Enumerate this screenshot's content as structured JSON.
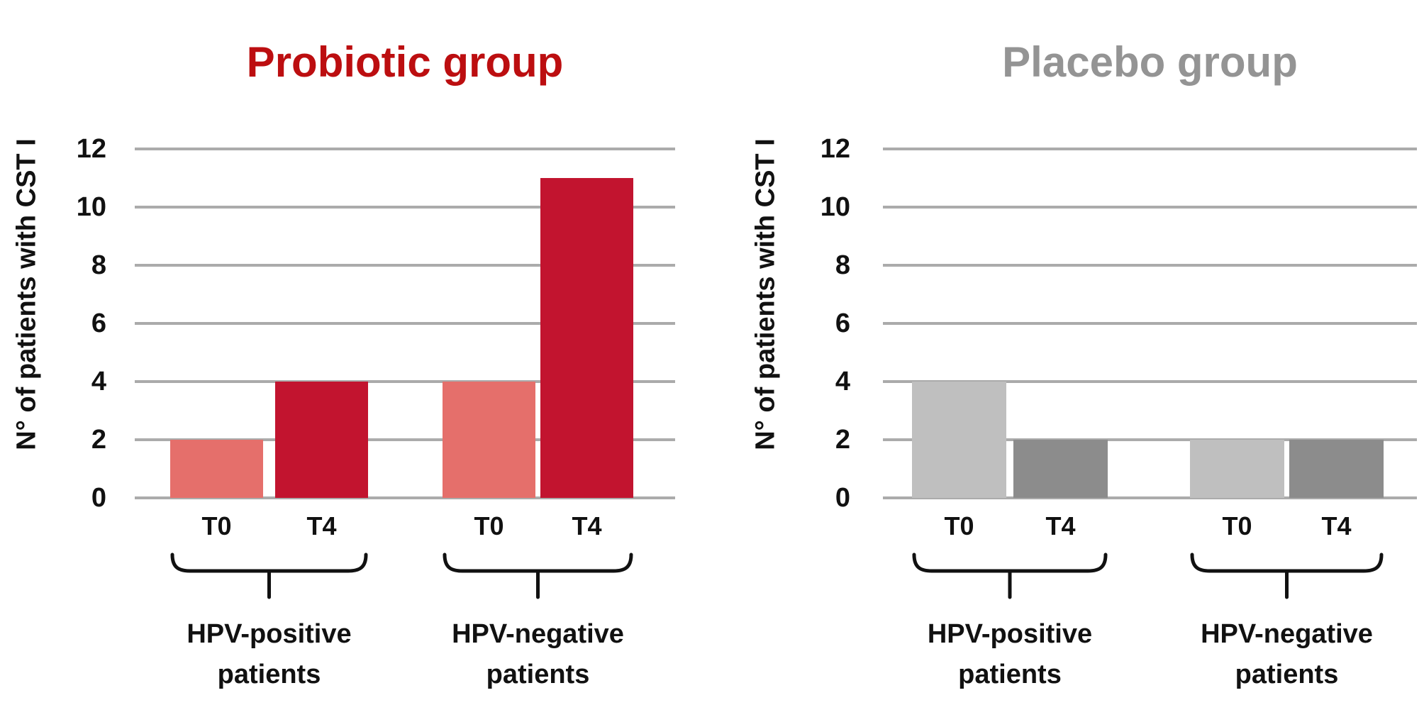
{
  "chart_data": [
    {
      "id": "probiotic",
      "type": "bar",
      "title": "Probiotic group",
      "title_color": "#BC0E10",
      "ylabel": "N° of patients with CST I",
      "ylim": [
        0,
        12
      ],
      "yticks": [
        0,
        2,
        4,
        6,
        8,
        10,
        12
      ],
      "grid": "horizontal",
      "legend": "none",
      "groups": [
        {
          "label": "HPV-positive\npatients",
          "bars": [
            {
              "label": "T0",
              "value": 2,
              "color": "#E56F6B"
            },
            {
              "label": "T4",
              "value": 4,
              "color": "#C2142F"
            }
          ]
        },
        {
          "label": "HPV-negative\npatients",
          "bars": [
            {
              "label": "T0",
              "value": 4,
              "color": "#E56F6B"
            },
            {
              "label": "T4",
              "value": 11,
              "color": "#C2142F"
            }
          ]
        }
      ]
    },
    {
      "id": "placebo",
      "type": "bar",
      "title": "Placebo group",
      "title_color": "#949494",
      "ylabel": "N° of patients with CST I",
      "ylim": [
        0,
        12
      ],
      "yticks": [
        0,
        2,
        4,
        6,
        8,
        10,
        12
      ],
      "grid": "horizontal",
      "legend": "none",
      "groups": [
        {
          "label": "HPV-positive\npatients",
          "bars": [
            {
              "label": "T0",
              "value": 4,
              "color": "#BFBFBF"
            },
            {
              "label": "T4",
              "value": 2,
              "color": "#8C8C8C"
            }
          ]
        },
        {
          "label": "HPV-negative\npatients",
          "bars": [
            {
              "label": "T0",
              "value": 2,
              "color": "#BFBFBF"
            },
            {
              "label": "T4",
              "value": 2,
              "color": "#8C8C8C"
            }
          ]
        }
      ]
    }
  ],
  "colors": {
    "gridline": "#ABABAB",
    "text": "#111111",
    "background": "#FFFFFF"
  }
}
